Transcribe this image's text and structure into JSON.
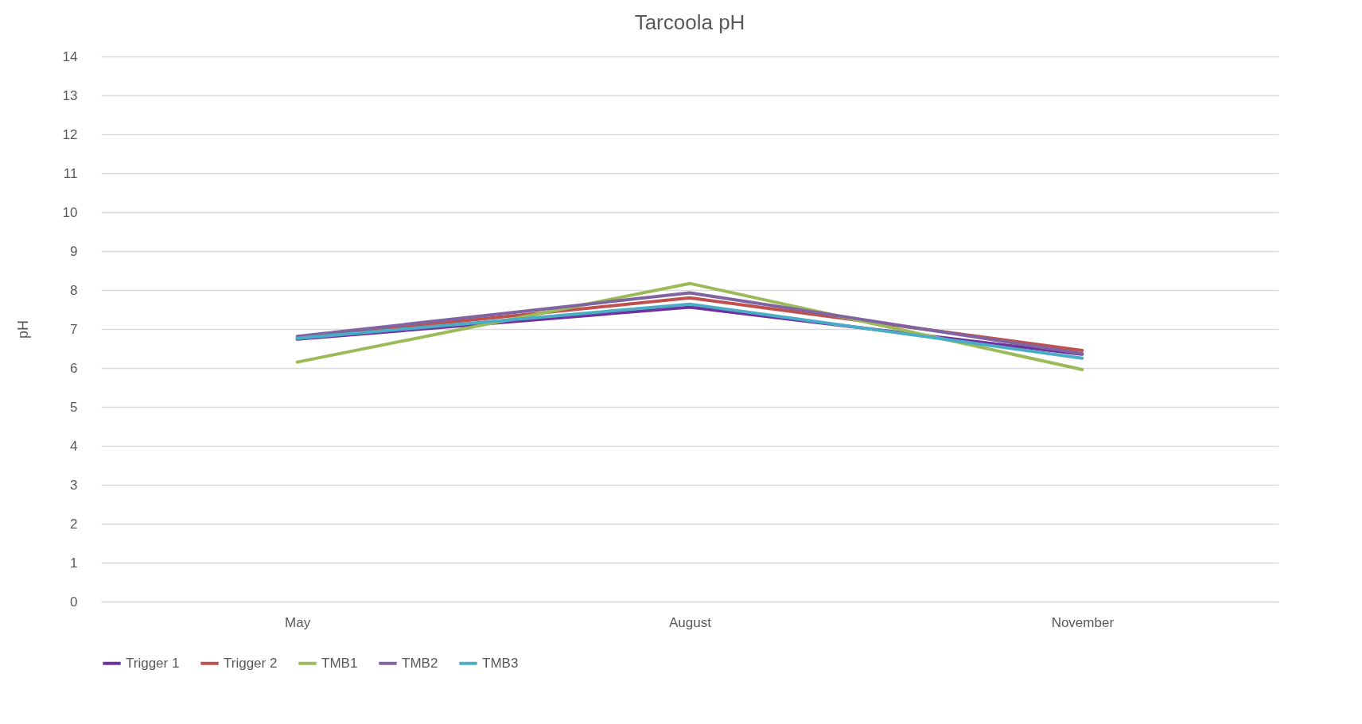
{
  "chart_data": {
    "type": "line",
    "title": "Tarcoola pH",
    "ylabel": "pH",
    "categories": [
      "May",
      "August",
      "November"
    ],
    "series": [
      {
        "name": "Trigger 1",
        "color": "#7030a0",
        "values": [
          6.74,
          7.56,
          6.35
        ]
      },
      {
        "name": "Trigger 2",
        "color": "#c0504d",
        "values": [
          6.78,
          7.8,
          6.45
        ]
      },
      {
        "name": "TMB1",
        "color": "#9bbb59",
        "values": [
          6.15,
          8.17,
          5.96
        ]
      },
      {
        "name": "TMB2",
        "color": "#8064a2",
        "values": [
          6.81,
          7.93,
          6.37
        ]
      },
      {
        "name": "TMB3",
        "color": "#4bacc6",
        "values": [
          6.76,
          7.64,
          6.25
        ]
      }
    ],
    "ylim": [
      0,
      14
    ],
    "yticks": [
      0,
      1,
      2,
      3,
      4,
      5,
      6,
      7,
      8,
      9,
      10,
      11,
      12,
      13,
      14
    ],
    "grid": "y",
    "legend": "bottom",
    "marker": "none",
    "line_style": "solid"
  }
}
